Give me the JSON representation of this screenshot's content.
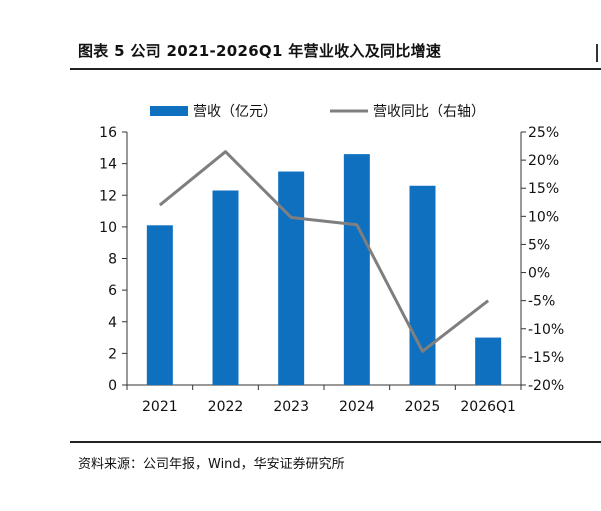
{
  "title": "图表 5 公司 2021-2026Q1 年营业收入及同比增速",
  "source": "资料来源：公司年报，Wind，华安证券研究所",
  "colors": {
    "bar": "#1070C0",
    "line": "#7F7F7F",
    "axis": "#333333"
  },
  "chart_data": {
    "type": "bar",
    "categories": [
      "2021",
      "2022",
      "2023",
      "2024",
      "2025",
      "2026Q1"
    ],
    "series": [
      {
        "name": "营收（亿元）",
        "type": "bar",
        "axis": "left",
        "values": [
          10.1,
          12.3,
          13.5,
          14.6,
          12.6,
          3.0
        ]
      },
      {
        "name": "营收同比（右轴）",
        "type": "line",
        "axis": "right",
        "values": [
          12.0,
          21.5,
          9.8,
          8.5,
          -14.0,
          -5.0
        ]
      }
    ],
    "ylim_left": [
      0,
      16
    ],
    "yticks_left": [
      "0",
      "2",
      "4",
      "6",
      "8",
      "10",
      "12",
      "14",
      "16"
    ],
    "ylim_right": [
      -20,
      25
    ],
    "yticks_right": [
      "-20%",
      "-15%",
      "-10%",
      "-5%",
      "0%",
      "5%",
      "10%",
      "15%",
      "20%",
      "25%"
    ],
    "legend_position": "top",
    "grid": false
  }
}
